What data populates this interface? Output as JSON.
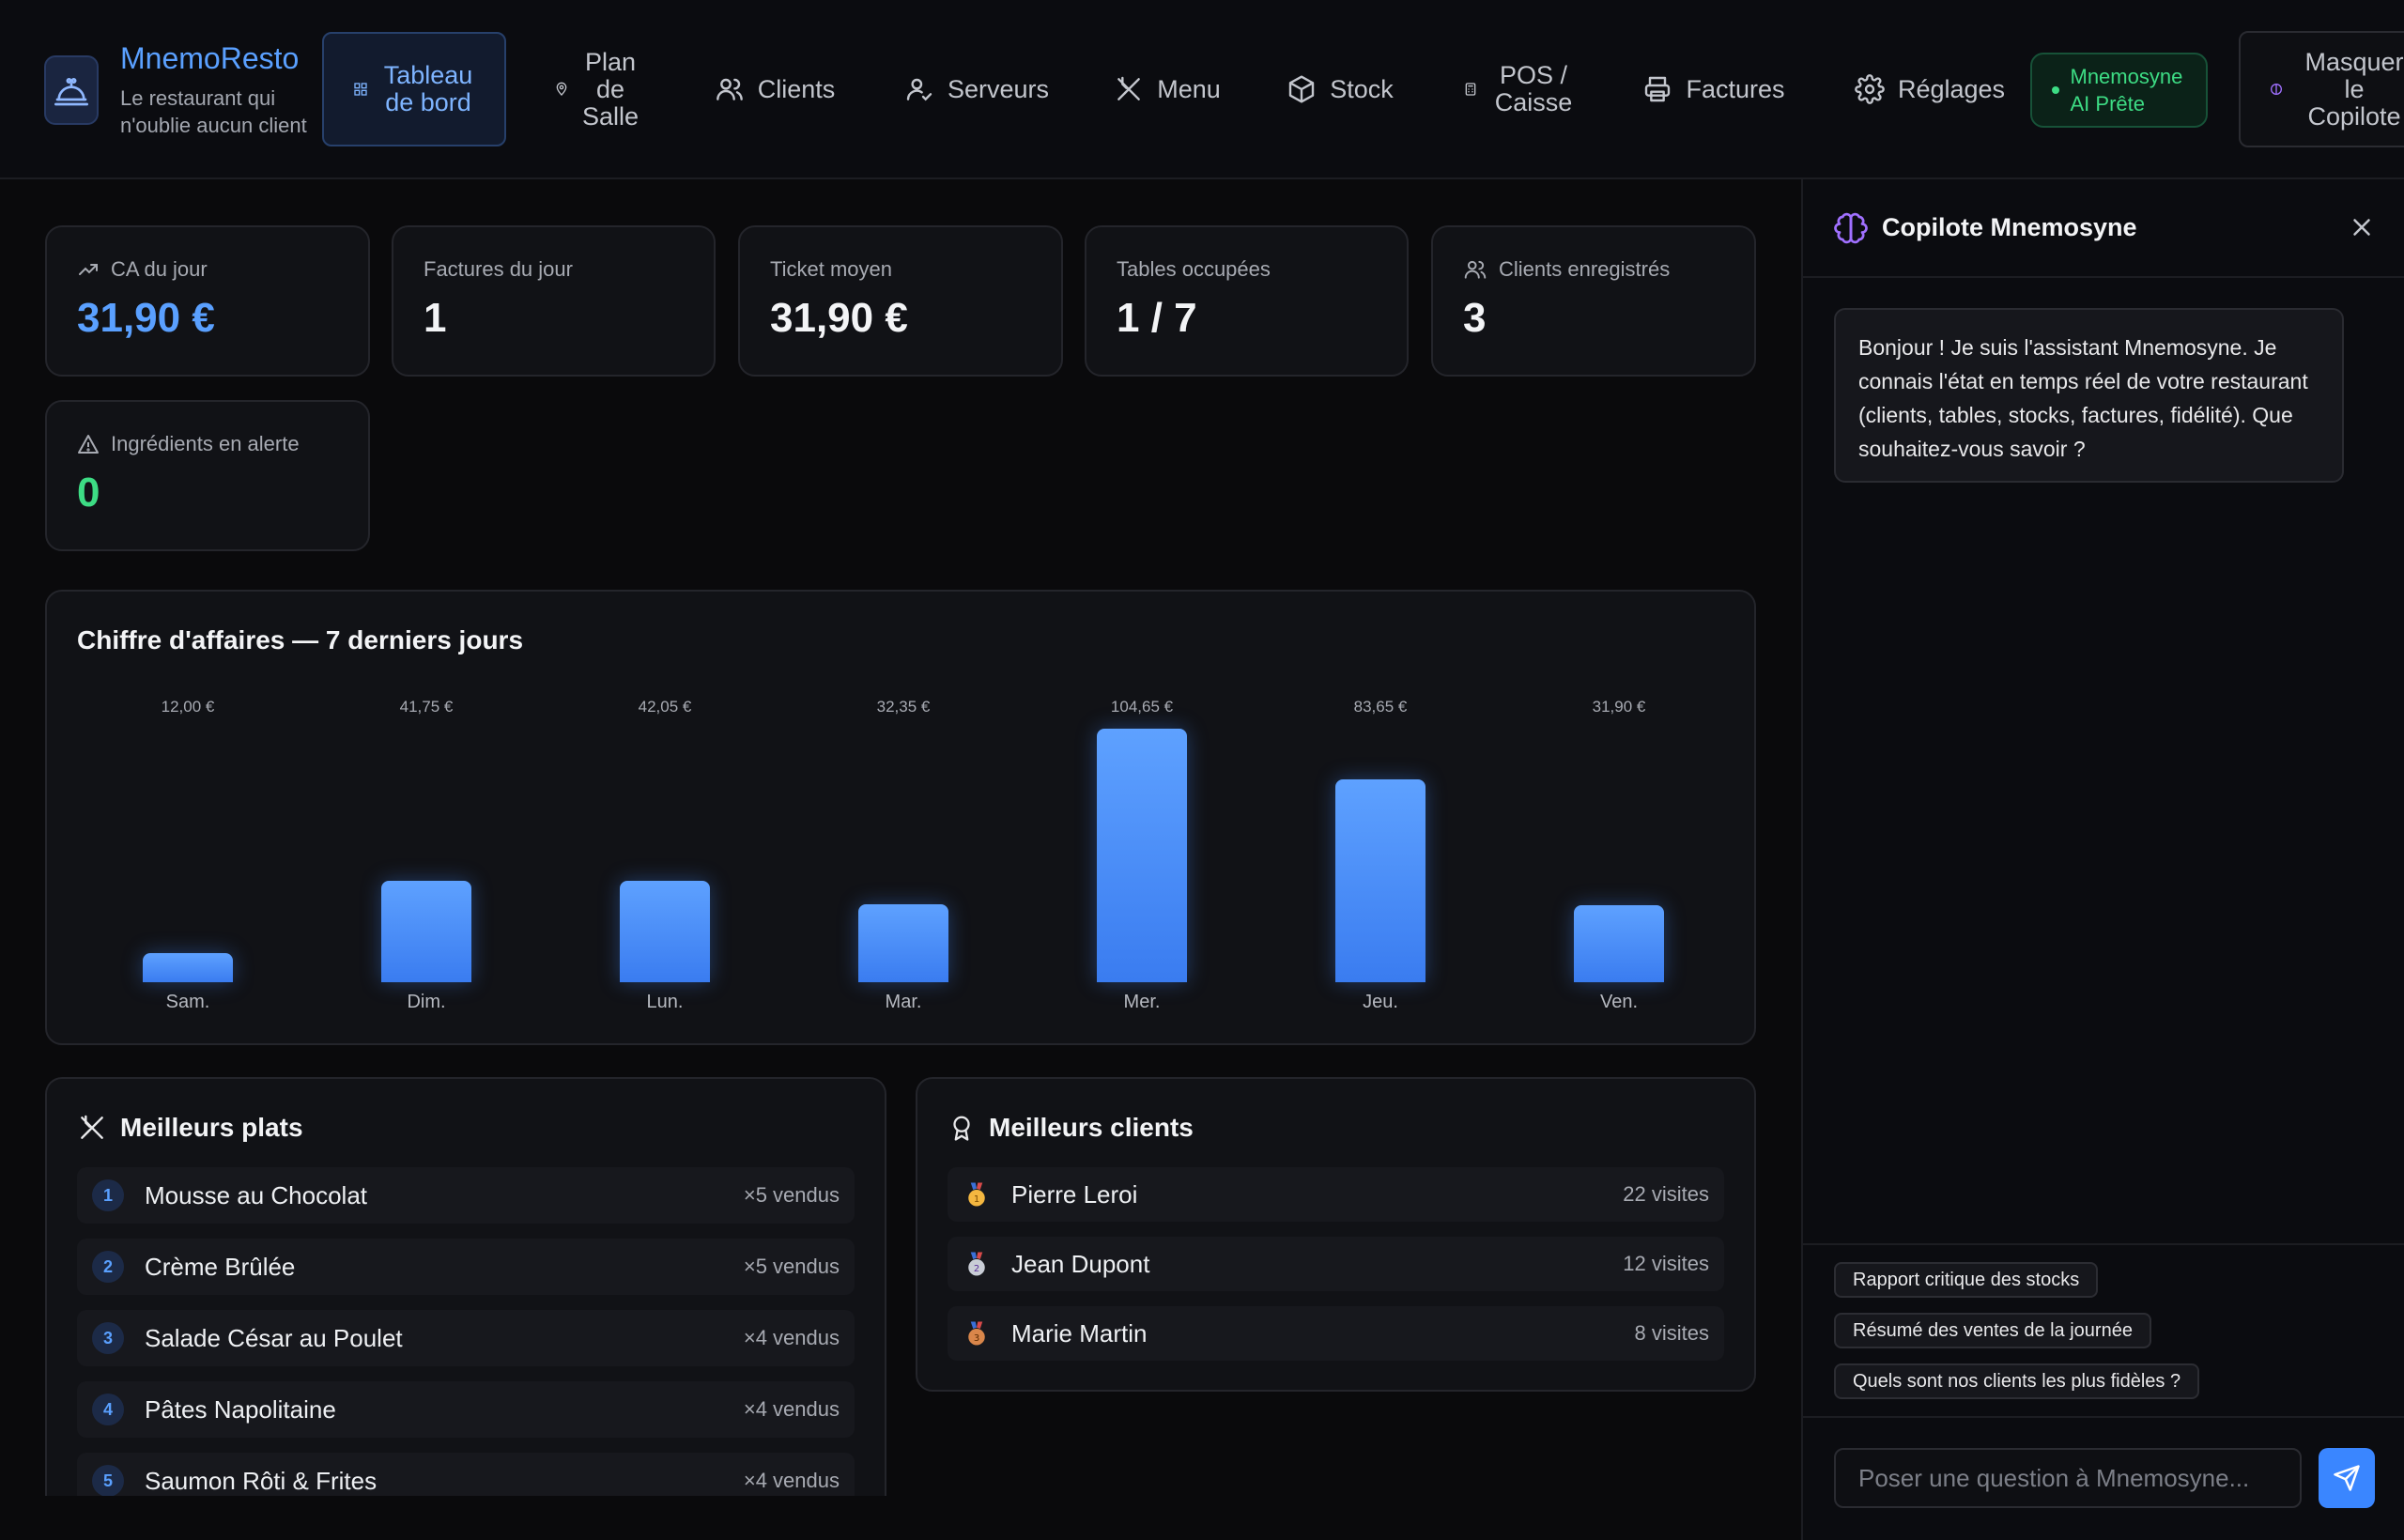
{
  "brand": {
    "title": "MnemoResto",
    "subtitle": "Le restaurant qui n'oublie aucun client",
    "logo_icon": "bell-icon"
  },
  "nav": {
    "items": [
      {
        "label": "Tableau de bord",
        "icon": "grid-icon",
        "active": true
      },
      {
        "label": "Plan de Salle",
        "icon": "map-pin-icon"
      },
      {
        "label": "Clients",
        "icon": "users-icon"
      },
      {
        "label": "Serveurs",
        "icon": "user-check-icon"
      },
      {
        "label": "Menu",
        "icon": "utensils-icon"
      },
      {
        "label": "Stock",
        "icon": "box-icon"
      },
      {
        "label": "POS / Caisse",
        "icon": "calculator-icon"
      },
      {
        "label": "Factures",
        "icon": "printer-icon"
      },
      {
        "label": "Réglages",
        "icon": "gear-icon"
      }
    ],
    "ai_status": "Mnemosyne AI Prête",
    "copilot_toggle": "Masquer le Copilote"
  },
  "stats": [
    {
      "label": "CA du jour",
      "value": "31,90 €",
      "icon": "trending-up-icon",
      "color": "#5aa0ff"
    },
    {
      "label": "Factures du jour",
      "value": "1"
    },
    {
      "label": "Ticket moyen",
      "value": "31,90 €"
    },
    {
      "label": "Tables occupées",
      "value": "1 / 7"
    },
    {
      "label": "Clients enregistrés",
      "value": "3",
      "icon": "users-icon"
    },
    {
      "label": "Ingrédients en alerte",
      "value": "0",
      "icon": "alert-triangle-icon",
      "color": "#3ddc84"
    }
  ],
  "revenue_chart": {
    "title": "Chiffre d'affaires — 7 derniers jours"
  },
  "chart_data": {
    "type": "bar",
    "title": "Chiffre d'affaires — 7 derniers jours",
    "categories": [
      "Sam.",
      "Dim.",
      "Lun.",
      "Mar.",
      "Mer.",
      "Jeu.",
      "Ven."
    ],
    "values": [
      12.0,
      41.75,
      42.05,
      32.35,
      104.65,
      83.65,
      31.9
    ],
    "value_labels": [
      "12,00 €",
      "41,75 €",
      "42,05 €",
      "32,35 €",
      "104,65 €",
      "83,65 €",
      "31,90 €"
    ],
    "ylim": [
      0,
      104.65
    ],
    "grid": false,
    "color": "#4a8ff8"
  },
  "top_dishes": {
    "title": "Meilleurs plats",
    "icon": "utensils-icon",
    "items": [
      {
        "rank": "1",
        "name": "Mousse au Chocolat",
        "sold": "×5 vendus"
      },
      {
        "rank": "2",
        "name": "Crème Brûlée",
        "sold": "×5 vendus"
      },
      {
        "rank": "3",
        "name": "Salade César au Poulet",
        "sold": "×4 vendus"
      },
      {
        "rank": "4",
        "name": "Pâtes Napolitaine",
        "sold": "×4 vendus"
      },
      {
        "rank": "5",
        "name": "Saumon Rôti & Frites",
        "sold": "×4 vendus"
      }
    ]
  },
  "top_clients": {
    "title": "Meilleurs clients",
    "icon": "award-icon",
    "items": [
      {
        "name": "Pierre Leroi",
        "visits": "22 visites",
        "medal": "gold-medal-icon"
      },
      {
        "name": "Jean Dupont",
        "visits": "12 visites",
        "medal": "silver-medal-icon"
      },
      {
        "name": "Marie Martin",
        "visits": "8 visites",
        "medal": "bronze-medal-icon"
      }
    ]
  },
  "copilot": {
    "title": "Copilote Mnemosyne",
    "icon": "brain-icon",
    "welcome": "Bonjour ! Je suis l'assistant Mnemosyne. Je connais l'état en temps réel de votre restaurant (clients, tables, stocks, factures, fidélité). Que souhaitez-vous savoir ?",
    "suggestions": [
      "Rapport critique des stocks",
      "Résumé des ventes de la journée",
      "Quels sont nos clients les plus fidèles ?"
    ],
    "input_placeholder": "Poser une question à Mnemosyne...",
    "input_value": ""
  }
}
